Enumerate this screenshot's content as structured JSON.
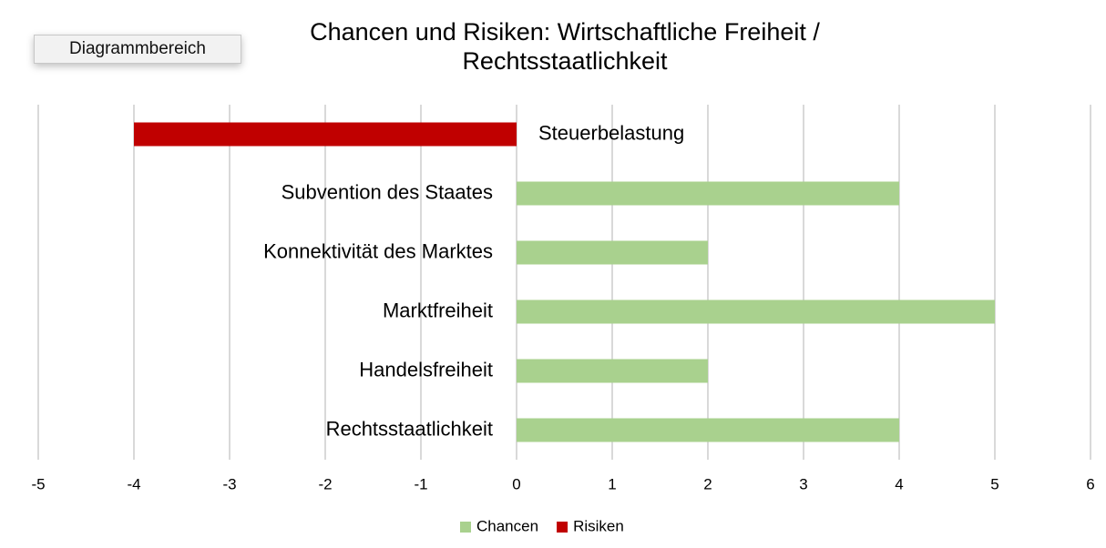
{
  "chart_data": {
    "type": "bar",
    "orientation": "horizontal",
    "title": [
      "Chancen und Risiken: Wirtschaftliche Freiheit /",
      "Rechtsstaatlichkeit"
    ],
    "categories": [
      "Steuerbelastung",
      "Subvention des Staates",
      "Konnektivität des Marktes",
      "Marktfreiheit",
      "Handelsfreiheit",
      "Rechtsstaatlichkeit"
    ],
    "series": [
      {
        "name": "Chancen",
        "color": "#a9d18e",
        "values": [
          null,
          4,
          2,
          5,
          2,
          4
        ]
      },
      {
        "name": "Risiken",
        "color": "#c00000",
        "values": [
          -4,
          null,
          null,
          null,
          null,
          null
        ]
      }
    ],
    "xlim": [
      -5,
      6
    ],
    "xticks": [
      -5,
      -4,
      -3,
      -2,
      -1,
      0,
      1,
      2,
      3,
      4,
      5,
      6
    ],
    "grid": true,
    "legend": "bottom"
  },
  "tooltip": "Diagrammbereich"
}
